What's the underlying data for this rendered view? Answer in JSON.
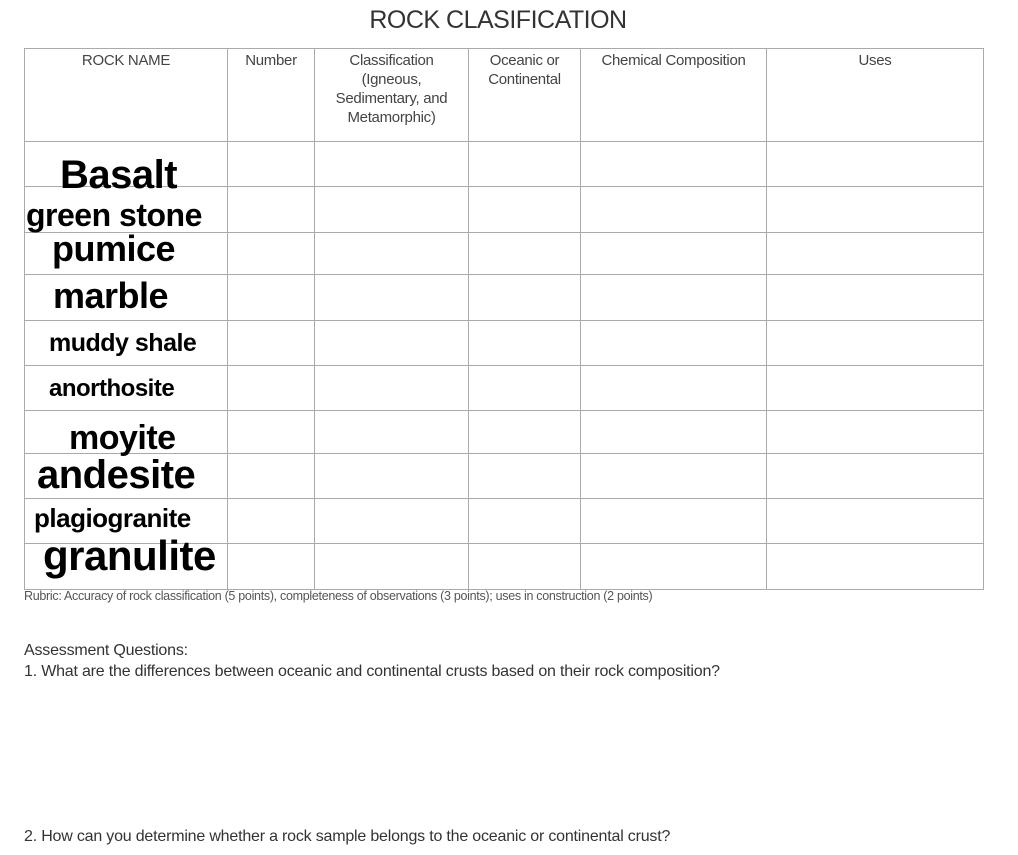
{
  "title": "ROCK CLASIFICATION",
  "table": {
    "headers": [
      "ROCK NAME",
      "Number",
      "Classification (Igneous, Sedimentary, and Metamorphic)",
      "Oceanic or Continental",
      "Chemical Composition",
      "Uses"
    ],
    "rock_names": [
      "Basalt",
      "green stone",
      "pumice",
      "marble",
      "muddy shale",
      "anorthosite",
      "moyite",
      "andesite",
      "plagiogranite",
      "granulite"
    ]
  },
  "rubric": "Rubric: Accuracy of rock classification (5 points), completeness of observations (3 points); uses in construction (2 points)",
  "assessment": {
    "heading": "Assessment Questions:",
    "questions": [
      "1. What are the differences between oceanic and continental crusts based on their rock composition?",
      "2. How can you determine whether a rock sample belongs to the oceanic or continental crust?"
    ]
  }
}
